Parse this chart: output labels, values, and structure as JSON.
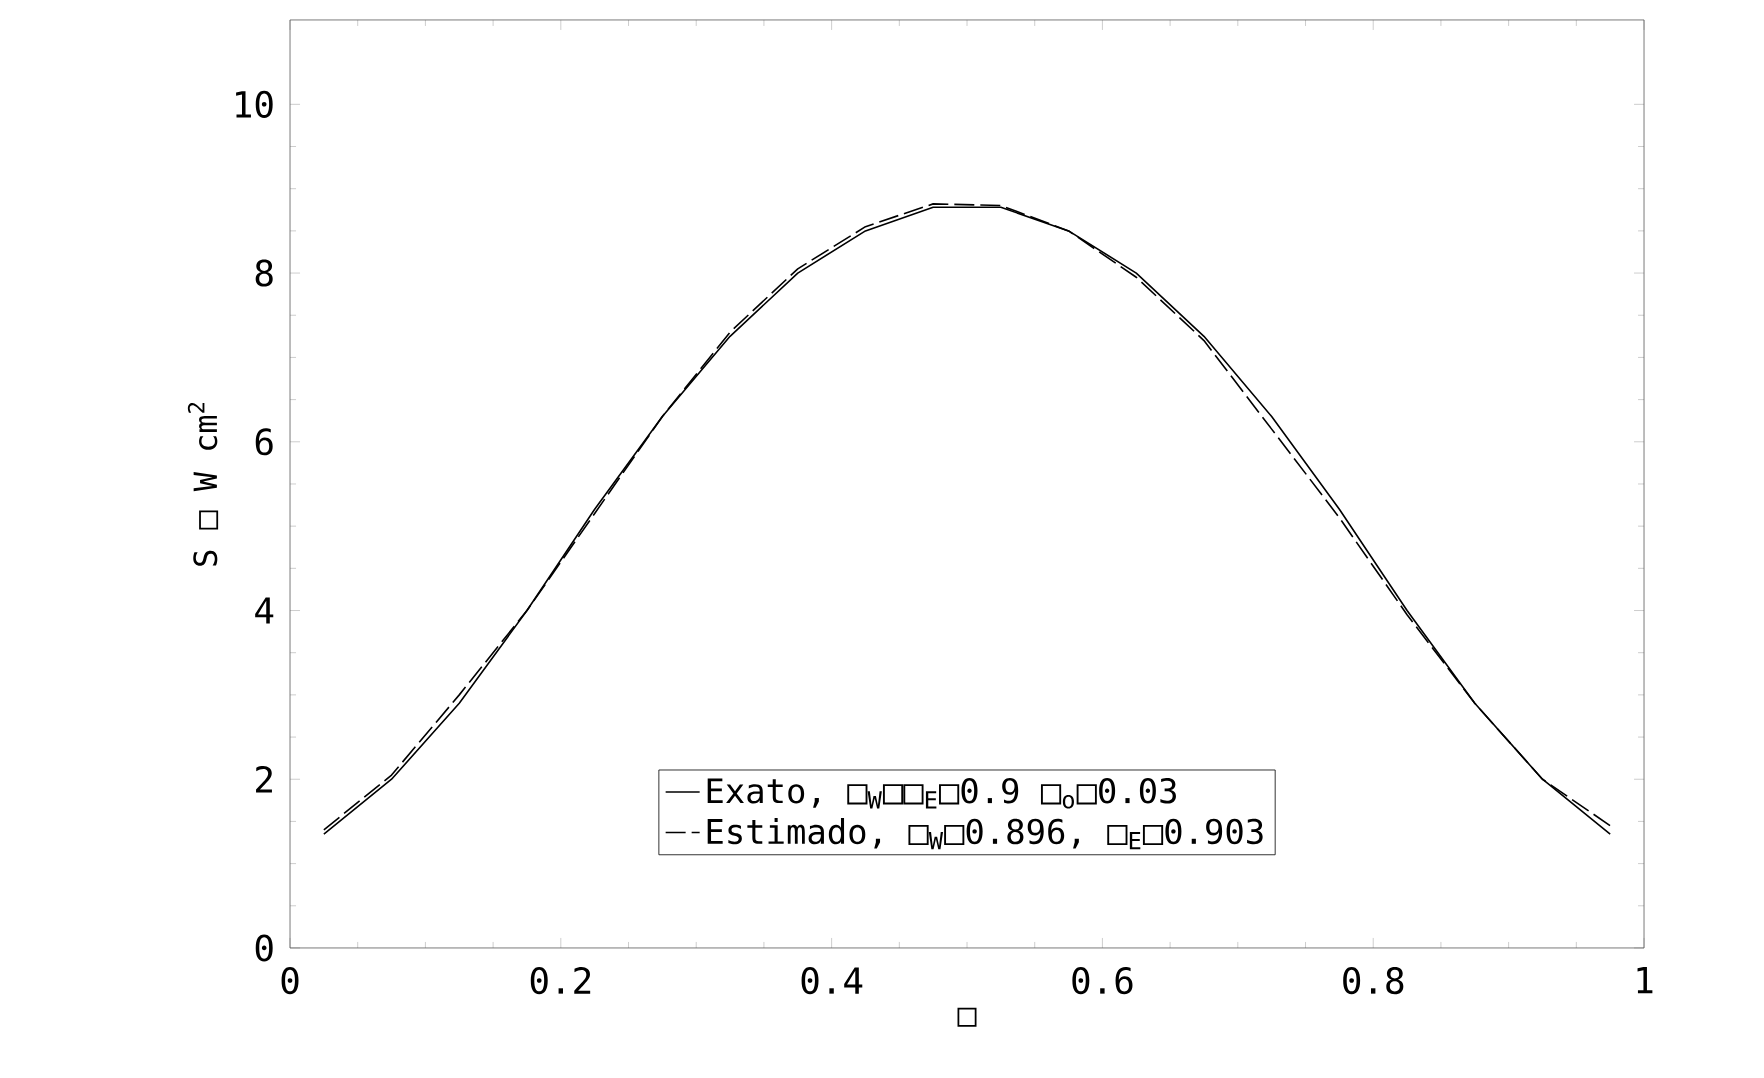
{
  "chart_data": {
    "type": "line",
    "xlabel": "□",
    "ylabel": "S □ W cm$^{2}$",
    "xlim": [
      0,
      1
    ],
    "ylim": [
      0,
      11
    ],
    "xticks": [
      0,
      0.2,
      0.4,
      0.6,
      0.8,
      1
    ],
    "yticks": [
      0,
      2,
      4,
      6,
      8,
      10
    ],
    "legend": "bottom",
    "grid": false,
    "marker": "none",
    "series": [
      {
        "name": "Exato, □$_{W}$□□$_{E}$□0.9    □$_{o}$□0.03",
        "color": "#000000",
        "line_style": "solid",
        "x": [
          0.025,
          0.075,
          0.125,
          0.175,
          0.225,
          0.275,
          0.325,
          0.375,
          0.425,
          0.475,
          0.525,
          0.575,
          0.625,
          0.675,
          0.725,
          0.775,
          0.825,
          0.875,
          0.925,
          0.975
        ],
        "values": [
          1.35,
          2.0,
          2.9,
          4.0,
          5.2,
          6.3,
          7.25,
          8.0,
          8.5,
          8.78,
          8.78,
          8.5,
          8.0,
          7.25,
          6.3,
          5.2,
          4.0,
          2.9,
          2.0,
          1.35
        ]
      },
      {
        "name": "Estimado, □$_{W}$□0.896, □$_{E}$□0.903",
        "color": "#000000",
        "line_style": "dashed",
        "x": [
          0.025,
          0.075,
          0.125,
          0.175,
          0.225,
          0.275,
          0.325,
          0.375,
          0.425,
          0.475,
          0.525,
          0.575,
          0.625,
          0.675,
          0.725,
          0.775,
          0.825,
          0.875,
          0.925,
          0.975
        ],
        "values": [
          1.4,
          2.05,
          3.0,
          4.0,
          5.15,
          6.3,
          7.3,
          8.05,
          8.55,
          8.82,
          8.8,
          8.5,
          7.95,
          7.2,
          6.15,
          5.1,
          3.95,
          2.9,
          2.0,
          1.45
        ]
      }
    ]
  }
}
